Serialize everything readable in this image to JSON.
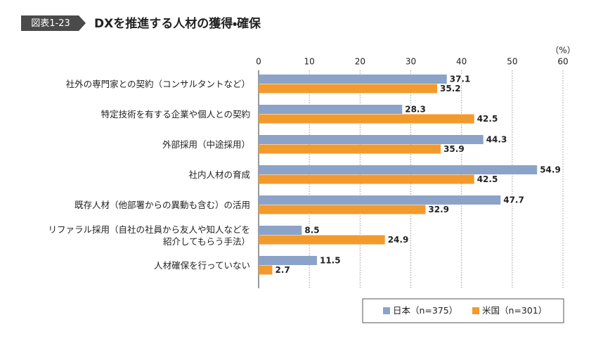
{
  "chart_data": {
    "type": "hbar",
    "figure_label": "図表1-23",
    "title": "DXを推進する人材の獲得・確保",
    "unit_label": "（%）",
    "categories": [
      "社外の専門家との契約（コンサルタントなど）",
      "特定技術を有する企業や個人との契約",
      "外部採用（中途採用）",
      "社内人材の育成",
      "既存人材（他部署からの異動も含む）の活用",
      "リファラル採用（自社の社員から友人や知人などを\n紹介してもらう手法）",
      "人材確保を行っていない"
    ],
    "series": [
      {
        "name": "日本（n=375）",
        "color": "#8ba3c8",
        "values": [
          37.1,
          28.3,
          44.3,
          54.9,
          47.7,
          8.5,
          11.5
        ]
      },
      {
        "name": "米国（n=301）",
        "color": "#f39a2c",
        "values": [
          35.2,
          42.5,
          35.9,
          42.5,
          32.9,
          24.9,
          2.7
        ]
      }
    ],
    "xlim": [
      0,
      60
    ],
    "xticks": [
      0,
      10,
      20,
      30,
      40,
      50,
      60
    ],
    "grid": true,
    "legend": "bottom-right"
  }
}
